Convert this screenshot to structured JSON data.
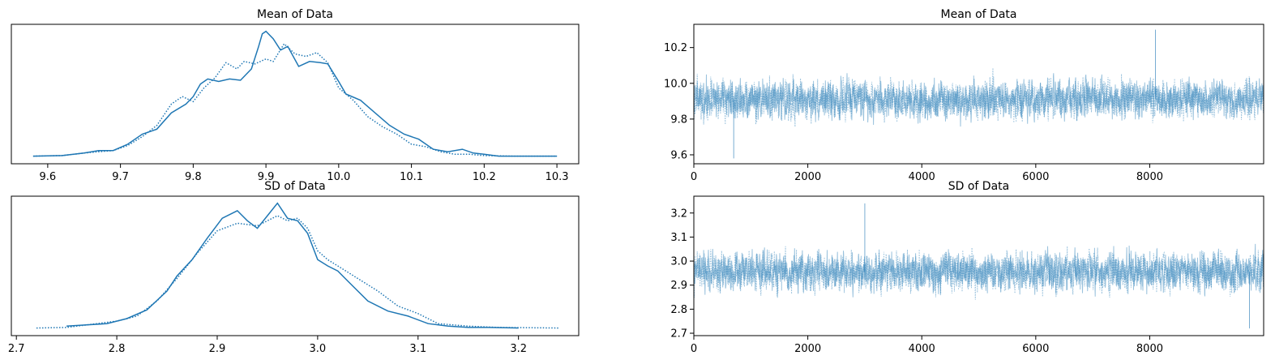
{
  "chart_data": [
    {
      "type": "line",
      "title": "Mean of Data",
      "variant": "kde",
      "xlim": [
        9.55,
        10.33
      ],
      "ylim": [
        0,
        1
      ],
      "xticks": [
        9.6,
        9.7,
        9.8,
        9.9,
        10.0,
        10.1,
        10.2,
        10.3
      ],
      "xtick_labels": [
        "9.6",
        "9.7",
        "9.8",
        "9.9",
        "10.0",
        "10.1",
        "10.2",
        "10.3"
      ],
      "yticks": [],
      "series": [
        {
          "style": "solid",
          "x": [
            9.58,
            9.62,
            9.65,
            9.67,
            9.69,
            9.71,
            9.73,
            9.75,
            9.77,
            9.79,
            9.8,
            9.81,
            9.82,
            9.835,
            9.85,
            9.865,
            9.88,
            9.89,
            9.895,
            9.9,
            9.91,
            9.92,
            9.93,
            9.945,
            9.96,
            9.975,
            9.985,
            10.0,
            10.01,
            10.03,
            10.05,
            10.07,
            10.09,
            10.11,
            10.13,
            10.15,
            10.17,
            10.185,
            10.2,
            10.22,
            10.26,
            10.3
          ],
          "y": [
            0.005,
            0.01,
            0.03,
            0.05,
            0.05,
            0.1,
            0.18,
            0.22,
            0.35,
            0.42,
            0.48,
            0.58,
            0.62,
            0.6,
            0.62,
            0.61,
            0.7,
            0.88,
            0.98,
            1.0,
            0.94,
            0.85,
            0.88,
            0.72,
            0.76,
            0.75,
            0.74,
            0.6,
            0.5,
            0.45,
            0.35,
            0.25,
            0.18,
            0.14,
            0.06,
            0.04,
            0.06,
            0.03,
            0.02,
            0.005,
            0.005,
            0.005
          ]
        },
        {
          "style": "dotted",
          "x": [
            9.58,
            9.62,
            9.65,
            9.67,
            9.69,
            9.71,
            9.73,
            9.75,
            9.77,
            9.785,
            9.8,
            9.815,
            9.83,
            9.845,
            9.86,
            9.87,
            9.885,
            9.9,
            9.91,
            9.925,
            9.94,
            9.955,
            9.97,
            9.985,
            10.0,
            10.02,
            10.04,
            10.06,
            10.08,
            10.1,
            10.12,
            10.14,
            10.16,
            10.18,
            10.2,
            10.24,
            10.3
          ],
          "y": [
            0.005,
            0.01,
            0.03,
            0.04,
            0.05,
            0.09,
            0.16,
            0.25,
            0.42,
            0.48,
            0.44,
            0.55,
            0.63,
            0.75,
            0.7,
            0.76,
            0.74,
            0.78,
            0.76,
            0.9,
            0.82,
            0.8,
            0.83,
            0.75,
            0.55,
            0.45,
            0.32,
            0.24,
            0.18,
            0.1,
            0.08,
            0.04,
            0.02,
            0.02,
            0.01,
            0.005,
            0.005
          ]
        }
      ]
    },
    {
      "type": "line",
      "title": "Mean of Data",
      "variant": "trace",
      "xlim": [
        0,
        9999
      ],
      "ylim": [
        9.55,
        10.33
      ],
      "xticks": [
        0,
        2000,
        4000,
        6000,
        8000
      ],
      "xtick_labels": [
        "0",
        "2000",
        "4000",
        "6000",
        "8000"
      ],
      "yticks": [
        9.6,
        9.8,
        10.0,
        10.2
      ],
      "ytick_labels": [
        "9.6",
        "9.8",
        "10.0",
        "10.2"
      ],
      "trace": {
        "chains": 2,
        "draws": 10000,
        "center": 9.91,
        "spread": 0.1,
        "range": [
          9.58,
          10.3
        ]
      },
      "series": [
        {
          "style": "solid",
          "x": [
            0,
            8100
          ],
          "y": [
            9.91,
            10.3
          ]
        },
        {
          "style": "dotted",
          "x": [
            0,
            700
          ],
          "y": [
            9.91,
            9.58
          ]
        }
      ]
    },
    {
      "type": "line",
      "title": "SD of Data",
      "variant": "kde",
      "xlim": [
        2.695,
        3.26
      ],
      "ylim": [
        0,
        1
      ],
      "xticks": [
        2.7,
        2.8,
        2.9,
        3.0,
        3.1,
        3.2
      ],
      "xtick_labels": [
        "2.7",
        "2.8",
        "2.9",
        "3.0",
        "3.1",
        "3.2"
      ],
      "yticks": [],
      "series": [
        {
          "style": "solid",
          "x": [
            2.75,
            2.77,
            2.79,
            2.81,
            2.83,
            2.85,
            2.86,
            2.875,
            2.89,
            2.905,
            2.92,
            2.93,
            2.94,
            2.95,
            2.96,
            2.97,
            2.98,
            2.99,
            3.0,
            3.01,
            3.02,
            3.03,
            3.05,
            3.07,
            3.09,
            3.11,
            3.13,
            3.15,
            3.17,
            3.2
          ],
          "y": [
            0.02,
            0.03,
            0.04,
            0.08,
            0.15,
            0.3,
            0.42,
            0.55,
            0.72,
            0.88,
            0.94,
            0.86,
            0.8,
            0.9,
            1.0,
            0.88,
            0.86,
            0.76,
            0.55,
            0.5,
            0.46,
            0.38,
            0.22,
            0.14,
            0.1,
            0.04,
            0.02,
            0.01,
            0.01,
            0.005
          ]
        },
        {
          "style": "dotted",
          "x": [
            2.72,
            2.75,
            2.78,
            2.8,
            2.82,
            2.84,
            2.86,
            2.88,
            2.9,
            2.92,
            2.94,
            2.96,
            2.97,
            2.98,
            2.99,
            3.0,
            3.01,
            3.02,
            3.04,
            3.06,
            3.08,
            3.1,
            3.12,
            3.15,
            3.18,
            3.24
          ],
          "y": [
            0.005,
            0.01,
            0.04,
            0.06,
            0.1,
            0.22,
            0.4,
            0.6,
            0.78,
            0.84,
            0.82,
            0.9,
            0.86,
            0.88,
            0.8,
            0.62,
            0.55,
            0.5,
            0.4,
            0.3,
            0.18,
            0.12,
            0.04,
            0.02,
            0.01,
            0.005
          ]
        }
      ]
    },
    {
      "type": "line",
      "title": "SD of Data",
      "variant": "trace",
      "xlim": [
        0,
        9999
      ],
      "ylim": [
        2.69,
        3.27
      ],
      "xticks": [
        0,
        2000,
        4000,
        6000,
        8000
      ],
      "xtick_labels": [
        "0",
        "2000",
        "4000",
        "6000",
        "8000"
      ],
      "yticks": [
        2.7,
        2.8,
        2.9,
        3.0,
        3.1,
        3.2
      ],
      "ytick_labels": [
        "2.7",
        "2.8",
        "2.9",
        "3.0",
        "3.1",
        "3.2"
      ],
      "trace": {
        "chains": 2,
        "draws": 10000,
        "center": 2.955,
        "spread": 0.075,
        "range": [
          2.72,
          3.24
        ]
      },
      "series": [
        {
          "style": "solid",
          "x": [
            0,
            3000
          ],
          "y": [
            2.955,
            3.24
          ]
        },
        {
          "style": "dotted",
          "x": [
            0,
            9750
          ],
          "y": [
            2.955,
            2.72
          ]
        }
      ]
    }
  ],
  "colors": {
    "line": "#1f77b4",
    "trace": "#1f77b4",
    "axis": "#000000",
    "background": "#ffffff"
  }
}
